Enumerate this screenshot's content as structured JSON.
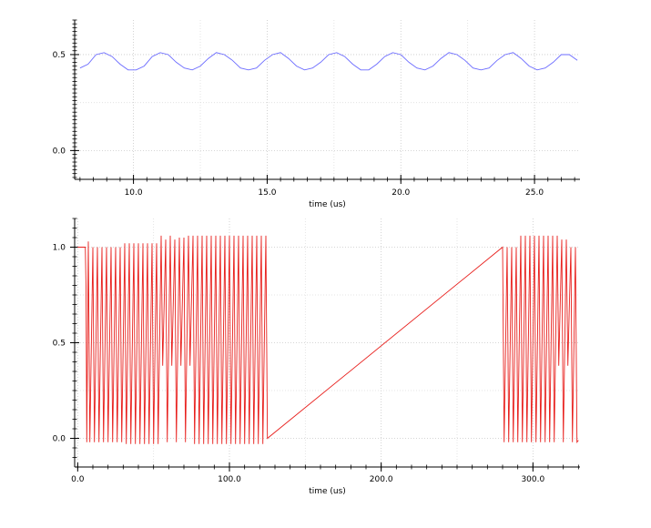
{
  "chart_data": [
    {
      "type": "line",
      "title": "",
      "xlabel": "time (us)",
      "ylabel": "",
      "xlim": [
        7.8,
        26.7
      ],
      "ylim": [
        -0.15,
        0.68
      ],
      "grid": true,
      "legend": "none",
      "color": "#6b6bff",
      "xticks": [
        10.0,
        15.0,
        20.0,
        25.0
      ],
      "xtick_labels": [
        "10.0",
        "15.0",
        "20.0",
        "25.0"
      ],
      "yticks": [
        0.0,
        0.5
      ],
      "ytick_labels": [
        "0.0",
        "0.5"
      ],
      "series": [
        {
          "x": [
            8.0,
            8.3,
            8.6,
            8.9,
            9.2,
            9.5,
            9.8,
            10.1,
            10.4,
            10.7,
            11.0,
            11.3,
            11.6,
            11.9,
            12.2,
            12.5,
            12.8,
            13.1,
            13.4,
            13.7,
            14.0,
            14.3,
            14.6,
            14.9,
            15.2,
            15.5,
            15.8,
            16.1,
            16.4,
            16.7,
            17.0,
            17.3,
            17.6,
            17.9,
            18.2,
            18.5,
            18.8,
            19.1,
            19.4,
            19.7,
            20.0,
            20.3,
            20.6,
            20.9,
            21.2,
            21.5,
            21.8,
            22.1,
            22.4,
            22.7,
            23.0,
            23.3,
            23.6,
            23.9,
            24.2,
            24.5,
            24.8,
            25.1,
            25.4,
            25.7,
            26.0,
            26.3,
            26.6
          ],
          "values": [
            0.43,
            0.45,
            0.5,
            0.51,
            0.49,
            0.45,
            0.42,
            0.42,
            0.44,
            0.49,
            0.51,
            0.5,
            0.46,
            0.43,
            0.42,
            0.44,
            0.48,
            0.51,
            0.5,
            0.47,
            0.43,
            0.42,
            0.43,
            0.47,
            0.5,
            0.51,
            0.48,
            0.44,
            0.42,
            0.43,
            0.46,
            0.5,
            0.51,
            0.49,
            0.45,
            0.42,
            0.42,
            0.45,
            0.49,
            0.51,
            0.5,
            0.46,
            0.43,
            0.42,
            0.44,
            0.48,
            0.51,
            0.5,
            0.47,
            0.43,
            0.42,
            0.43,
            0.47,
            0.5,
            0.51,
            0.48,
            0.44,
            0.42,
            0.43,
            0.46,
            0.5,
            0.5,
            0.47
          ]
        }
      ]
    },
    {
      "type": "line",
      "title": "",
      "xlabel": "time (us)",
      "ylabel": "",
      "xlim": [
        -2,
        331
      ],
      "ylim": [
        -0.15,
        1.15
      ],
      "grid": true,
      "legend": "none",
      "color": "#e8201d",
      "xticks": [
        0.0,
        100.0,
        200.0,
        300.0
      ],
      "xtick_labels": [
        "0.0",
        "100.0",
        "200.0",
        "300.0"
      ],
      "yticks": [
        0.0,
        0.5,
        1.0
      ],
      "ytick_labels": [
        "0.0",
        "0.5",
        "1.0"
      ],
      "series": [
        {
          "x": [
            0,
            5,
            5.5,
            6,
            7,
            8,
            10,
            11,
            13,
            14,
            16,
            17,
            19,
            20,
            22,
            23,
            25,
            26,
            28,
            29,
            31,
            32,
            34,
            35,
            37,
            38,
            40,
            41,
            43,
            44,
            46,
            47,
            49,
            50,
            52,
            53,
            55,
            56,
            58,
            59,
            61,
            62,
            64,
            65,
            67,
            68,
            70,
            71,
            73,
            74,
            76,
            77,
            79,
            80,
            82,
            83,
            85,
            86,
            88,
            89,
            91,
            92,
            94,
            95,
            97,
            98,
            100,
            101,
            103,
            104,
            106,
            107,
            109,
            110,
            112,
            113,
            115,
            116,
            118,
            119,
            121,
            122,
            124,
            125,
            280,
            281,
            283,
            284,
            286,
            287,
            289,
            290,
            292,
            293,
            295,
            296,
            298,
            299,
            301,
            302,
            304,
            305,
            307,
            308,
            310,
            311,
            313,
            314,
            316,
            317,
            319,
            320,
            322,
            323,
            325,
            326,
            328,
            329,
            330
          ],
          "values": [
            1.0,
            1.0,
            0.78,
            -0.02,
            1.03,
            -0.02,
            1.0,
            -0.02,
            1.0,
            -0.02,
            1.0,
            -0.02,
            1.0,
            -0.02,
            1.0,
            -0.02,
            1.0,
            -0.02,
            1.0,
            -0.02,
            1.02,
            -0.03,
            1.02,
            -0.03,
            1.02,
            -0.03,
            1.02,
            -0.03,
            1.02,
            -0.03,
            1.02,
            -0.03,
            1.02,
            -0.03,
            1.02,
            -0.03,
            1.06,
            0.38,
            1.04,
            -0.02,
            1.06,
            0.38,
            1.04,
            -0.02,
            1.05,
            0.38,
            1.05,
            -0.02,
            1.06,
            0.38,
            1.06,
            -0.03,
            1.06,
            -0.03,
            1.06,
            -0.03,
            1.06,
            -0.03,
            1.06,
            -0.03,
            1.06,
            -0.03,
            1.06,
            -0.03,
            1.06,
            -0.03,
            1.06,
            -0.03,
            1.06,
            -0.03,
            1.06,
            -0.03,
            1.06,
            -0.03,
            1.06,
            -0.03,
            1.06,
            -0.03,
            1.06,
            -0.03,
            1.06,
            -0.03,
            1.06,
            0.0,
            1.0,
            -0.02,
            1.0,
            -0.02,
            1.0,
            -0.02,
            1.0,
            -0.02,
            1.06,
            -0.02,
            1.06,
            -0.02,
            1.06,
            -0.02,
            1.06,
            -0.02,
            1.06,
            -0.02,
            1.06,
            -0.02,
            1.06,
            -0.02,
            1.06,
            -0.02,
            1.06,
            0.38,
            1.04,
            -0.02,
            1.04,
            0.38,
            1.0,
            -0.02,
            1.0,
            -0.02,
            -0.01
          ]
        }
      ]
    }
  ]
}
